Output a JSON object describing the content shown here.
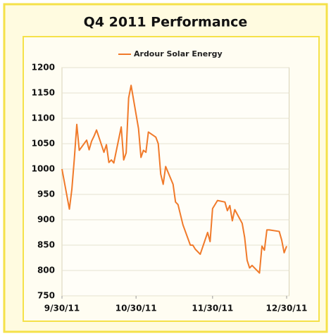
{
  "chart_data": {
    "type": "line",
    "title": "Q4 2011 Performance",
    "x": [
      "2011-09-30",
      "2011-10-03",
      "2011-10-04",
      "2011-10-05",
      "2011-10-06",
      "2011-10-07",
      "2011-10-10",
      "2011-10-11",
      "2011-10-12",
      "2011-10-13",
      "2011-10-14",
      "2011-10-17",
      "2011-10-18",
      "2011-10-19",
      "2011-10-20",
      "2011-10-21",
      "2011-10-24",
      "2011-10-25",
      "2011-10-26",
      "2011-10-27",
      "2011-10-28",
      "2011-10-31",
      "2011-11-01",
      "2011-11-02",
      "2011-11-03",
      "2011-11-04",
      "2011-11-07",
      "2011-11-08",
      "2011-11-09",
      "2011-11-10",
      "2011-11-11",
      "2011-11-14",
      "2011-11-15",
      "2011-11-16",
      "2011-11-17",
      "2011-11-18",
      "2011-11-21",
      "2011-11-22",
      "2011-11-23",
      "2011-11-25",
      "2011-11-28",
      "2011-11-29",
      "2011-11-30",
      "2011-12-01",
      "2011-12-02",
      "2011-12-05",
      "2011-12-06",
      "2011-12-07",
      "2011-12-08",
      "2011-12-09",
      "2011-12-12",
      "2011-12-13",
      "2011-12-14",
      "2011-12-15",
      "2011-12-16",
      "2011-12-19",
      "2011-12-20",
      "2011-12-21",
      "2011-12-22",
      "2011-12-23",
      "2011-12-27",
      "2011-12-28",
      "2011-12-29",
      "2011-12-30"
    ],
    "series": [
      {
        "name": "Ardour Solar Energy",
        "color": "#f07a2a",
        "values": [
          1000,
          921,
          960,
          1020,
          1088,
          1037,
          1057,
          1038,
          1055,
          1065,
          1077,
          1033,
          1048,
          1013,
          1018,
          1012,
          1083,
          1018,
          1032,
          1140,
          1165,
          1080,
          1023,
          1037,
          1033,
          1073,
          1063,
          1050,
          990,
          970,
          1005,
          970,
          935,
          930,
          910,
          890,
          850,
          850,
          842,
          832,
          875,
          857,
          922,
          930,
          938,
          935,
          918,
          928,
          898,
          920,
          893,
          865,
          820,
          805,
          810,
          795,
          848,
          840,
          880,
          880,
          877,
          860,
          835,
          848
        ]
      }
    ],
    "xlim": [
      "2011-09-30",
      "2011-12-31"
    ],
    "xticks": [
      {
        "value": "2011-09-30",
        "label": "9/30/11"
      },
      {
        "value": "2011-10-30",
        "label": "10/30/11"
      },
      {
        "value": "2011-11-30",
        "label": "11/30/11"
      },
      {
        "value": "2011-12-30",
        "label": "12/30/11"
      }
    ],
    "ylim": [
      750,
      1200
    ],
    "yticks": [
      750,
      800,
      850,
      900,
      950,
      1000,
      1050,
      1100,
      1150,
      1200
    ],
    "grid": true,
    "legend": "top"
  }
}
